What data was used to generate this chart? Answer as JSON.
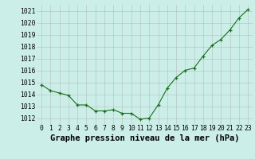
{
  "x": [
    0,
    1,
    2,
    3,
    4,
    5,
    6,
    7,
    8,
    9,
    10,
    11,
    12,
    13,
    14,
    15,
    16,
    17,
    18,
    19,
    20,
    21,
    22,
    23
  ],
  "y": [
    1014.8,
    1014.3,
    1014.1,
    1013.9,
    1013.1,
    1013.1,
    1012.6,
    1012.6,
    1012.7,
    1012.4,
    1012.4,
    1011.9,
    1012.0,
    1013.1,
    1014.5,
    1015.4,
    1016.0,
    1016.2,
    1017.2,
    1018.1,
    1018.6,
    1019.4,
    1020.4,
    1021.1
  ],
  "ylim": [
    1011.5,
    1021.5
  ],
  "yticks": [
    1012,
    1013,
    1014,
    1015,
    1016,
    1017,
    1018,
    1019,
    1020,
    1021
  ],
  "xticks": [
    0,
    1,
    2,
    3,
    4,
    5,
    6,
    7,
    8,
    9,
    10,
    11,
    12,
    13,
    14,
    15,
    16,
    17,
    18,
    19,
    20,
    21,
    22,
    23
  ],
  "line_color": "#1a6e1a",
  "marker_color": "#1a6e1a",
  "bg_color": "#cceee8",
  "grid_color": "#aaaaaa",
  "xlabel": "Graphe pression niveau de la mer (hPa)",
  "xlabel_fontsize": 7.5,
  "tick_fontsize": 5.8,
  "xlim_left": -0.5,
  "xlim_right": 23.5
}
